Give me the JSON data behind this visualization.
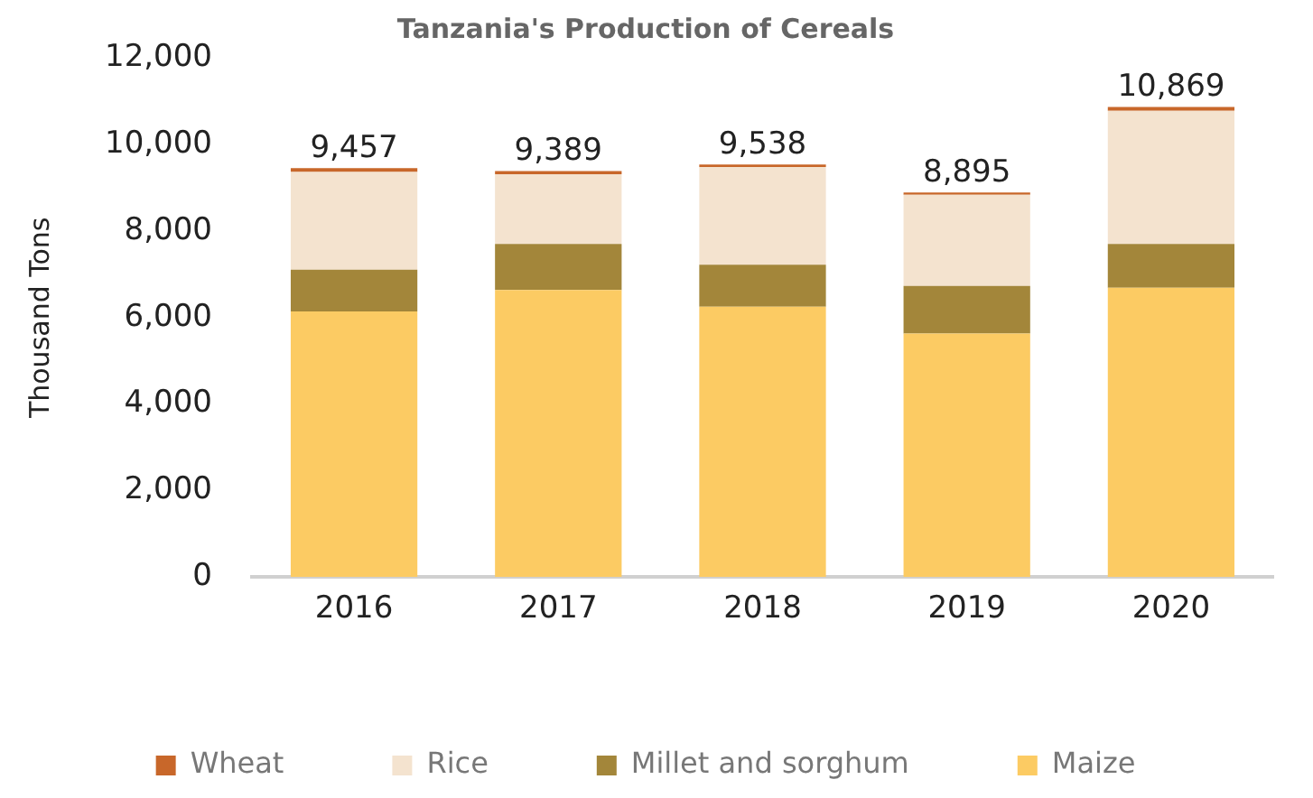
{
  "chart_data": {
    "type": "bar",
    "title": "Tanzania's Production of Cereals",
    "ylabel": "Thousand Tons",
    "categories": [
      "2016",
      "2017",
      "2018",
      "2019",
      "2020"
    ],
    "stacked": true,
    "series": [
      {
        "name": "Maize",
        "color": "#fccb63",
        "values": [
          6140,
          6640,
          6250,
          5630,
          6690
        ]
      },
      {
        "name": "Millet and sorghum",
        "color": "#a3863a",
        "values": [
          970,
          1060,
          970,
          1100,
          1010
        ]
      },
      {
        "name": "Rice",
        "color": "#f4e3cf",
        "values": [
          2260,
          1615,
          2260,
          2110,
          3080
        ]
      },
      {
        "name": "Wheat",
        "color": "#c8672a",
        "values": [
          87,
          74,
          58,
          55,
          89
        ]
      }
    ],
    "totals": [
      "9,457",
      "9,389",
      "9,538",
      "8,895",
      "10,869"
    ],
    "ylim": [
      0,
      12000
    ],
    "yticks": [
      {
        "value": 0,
        "label": "0"
      },
      {
        "value": 2000,
        "label": "2,000"
      },
      {
        "value": 4000,
        "label": "4,000"
      },
      {
        "value": 6000,
        "label": "6,000"
      },
      {
        "value": 8000,
        "label": "8,000"
      },
      {
        "value": 10000,
        "label": "10,000"
      },
      {
        "value": 12000,
        "label": "12,000"
      }
    ],
    "grid": false,
    "legend": "bottom"
  }
}
